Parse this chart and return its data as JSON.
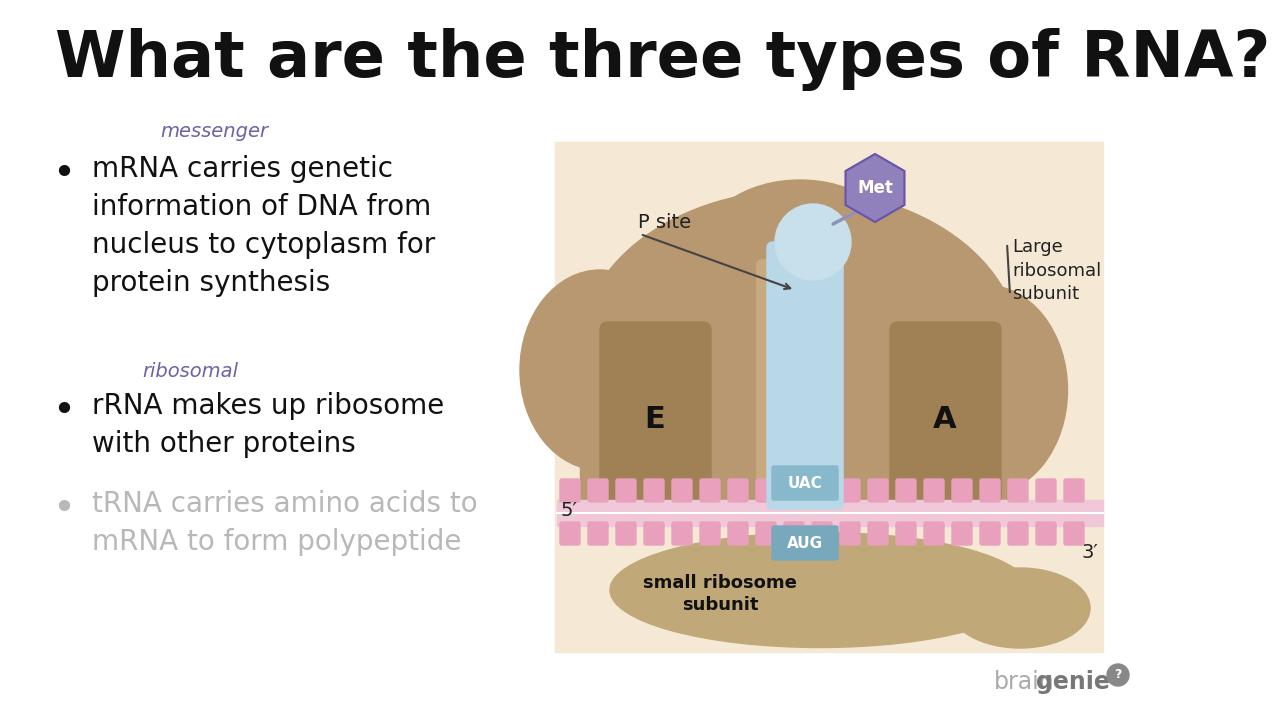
{
  "title": "What are the three types of RNA?",
  "title_fontsize": 46,
  "title_color": "#111111",
  "slide_bg": "#ffffff",
  "bullet1_handwritten": "messenger",
  "bullet1_main": "mRNA carries genetic\ninformation of DNA from\nnucleus to cytoplasm for\nprotein synthesis",
  "bullet2_handwritten": "ribosomal",
  "bullet2_main": "rRNA makes up ribosome\nwith other proteins",
  "bullet3_main": "tRNA carries amino acids to\nmRNA to form polypeptide",
  "bullet1_color": "#111111",
  "bullet2_color": "#111111",
  "bullet3_color": "#b8b8b8",
  "handwritten_color": "#7060a8",
  "diagram_bg": "#f5e8d5",
  "large_sub_color": "#b89870",
  "large_sub_dark": "#a08055",
  "small_sub_color": "#c0a878",
  "trna_color": "#b8d8e8",
  "trna_ball_color": "#c8e0ec",
  "mrna_bar_color": "#f0c8d8",
  "mrna_tooth_color": "#e8a0bc",
  "met_color": "#9080bb",
  "met_text": "#ffffff",
  "label_color": "#222222",
  "labels": {
    "P_site": "P site",
    "E_label": "E",
    "A_label": "A",
    "UAC": "UAC",
    "AUG": "AUG",
    "five_prime": "5′",
    "three_prime": "3′",
    "large_sub": "Large\nribosomal\nsubunit",
    "small_sub": "small ribosome\nsubunit",
    "met": "Met"
  }
}
